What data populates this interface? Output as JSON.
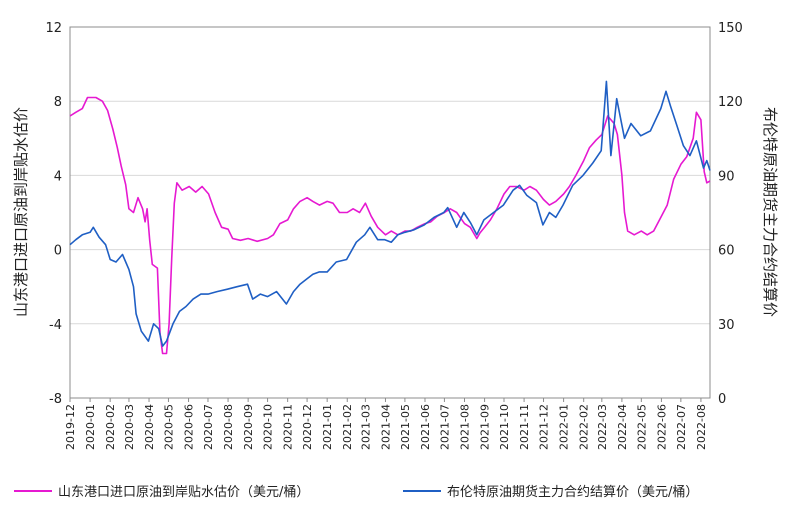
{
  "chart_data": {
    "type": "line",
    "title": "",
    "y_left": {
      "label": "山东港口进口原油到岸贴水估价",
      "ticks": [
        12,
        8,
        4,
        0,
        -4,
        -8
      ],
      "range": [
        -8,
        12
      ]
    },
    "y_right": {
      "label": "布伦特原油期货主力合约结算价",
      "ticks": [
        150,
        120,
        90,
        60,
        30,
        0
      ],
      "range": [
        0,
        150
      ]
    },
    "x_tick_labels": [
      "2019-12",
      "2020-01",
      "2020-02",
      "2020-03",
      "2020-04",
      "2020-05",
      "2020-06",
      "2020-07",
      "2020-08",
      "2020-09",
      "2020-10",
      "2020-11",
      "2020-12",
      "2021-01",
      "2021-02",
      "2021-03",
      "2021-04",
      "2021-05",
      "2021-06",
      "2021-07",
      "2021-08",
      "2021-09",
      "2021-10",
      "2021-11",
      "2021-12",
      "2022-01",
      "2022-02",
      "2022-03",
      "2022-04",
      "2022-05",
      "2022-06",
      "2022-07",
      "2022-08"
    ],
    "grid": "horizontal",
    "legend_position": "bottom",
    "colors": {
      "series1": "#e619d1",
      "series2": "#1f5fc4"
    },
    "series": [
      {
        "name": "山东港口进口原油到岸贴水估价（美元/桶）",
        "axis": "left",
        "points": [
          [
            "2019-12-01",
            7.2
          ],
          [
            "2019-12-10",
            7.4
          ],
          [
            "2019-12-20",
            7.6
          ],
          [
            "2019-12-28",
            8.2
          ],
          [
            "2020-01-10",
            8.2
          ],
          [
            "2020-01-20",
            8.0
          ],
          [
            "2020-01-28",
            7.5
          ],
          [
            "2020-02-05",
            6.5
          ],
          [
            "2020-02-12",
            5.5
          ],
          [
            "2020-02-18",
            4.5
          ],
          [
            "2020-02-25",
            3.5
          ],
          [
            "2020-03-01",
            2.2
          ],
          [
            "2020-03-08",
            2.0
          ],
          [
            "2020-03-15",
            2.8
          ],
          [
            "2020-03-22",
            2.2
          ],
          [
            "2020-03-26",
            1.5
          ],
          [
            "2020-03-29",
            2.2
          ],
          [
            "2020-04-02",
            0.5
          ],
          [
            "2020-04-06",
            -0.8
          ],
          [
            "2020-04-14",
            -1.0
          ],
          [
            "2020-04-18",
            -4.5
          ],
          [
            "2020-04-22",
            -5.6
          ],
          [
            "2020-04-28",
            -5.6
          ],
          [
            "2020-05-02",
            -4.0
          ],
          [
            "2020-05-06",
            -0.5
          ],
          [
            "2020-05-10",
            2.5
          ],
          [
            "2020-05-14",
            3.6
          ],
          [
            "2020-05-22",
            3.2
          ],
          [
            "2020-06-02",
            3.4
          ],
          [
            "2020-06-12",
            3.1
          ],
          [
            "2020-06-22",
            3.4
          ],
          [
            "2020-07-02",
            3.0
          ],
          [
            "2020-07-12",
            2.0
          ],
          [
            "2020-07-22",
            1.2
          ],
          [
            "2020-08-01",
            1.1
          ],
          [
            "2020-08-08",
            0.6
          ],
          [
            "2020-08-20",
            0.5
          ],
          [
            "2020-09-01",
            0.6
          ],
          [
            "2020-09-15",
            0.45
          ],
          [
            "2020-10-01",
            0.6
          ],
          [
            "2020-10-10",
            0.8
          ],
          [
            "2020-10-20",
            1.4
          ],
          [
            "2020-11-01",
            1.6
          ],
          [
            "2020-11-10",
            2.2
          ],
          [
            "2020-11-20",
            2.6
          ],
          [
            "2020-12-01",
            2.8
          ],
          [
            "2020-12-10",
            2.6
          ],
          [
            "2020-12-20",
            2.4
          ],
          [
            "2021-01-01",
            2.6
          ],
          [
            "2021-01-10",
            2.5
          ],
          [
            "2021-01-20",
            2.0
          ],
          [
            "2021-02-01",
            2.0
          ],
          [
            "2021-02-10",
            2.2
          ],
          [
            "2021-02-20",
            2.0
          ],
          [
            "2021-03-01",
            2.5
          ],
          [
            "2021-03-10",
            1.8
          ],
          [
            "2021-03-20",
            1.2
          ],
          [
            "2021-04-01",
            0.8
          ],
          [
            "2021-04-10",
            1.0
          ],
          [
            "2021-04-20",
            0.8
          ],
          [
            "2021-05-01",
            1.0
          ],
          [
            "2021-05-10",
            1.0
          ],
          [
            "2021-05-20",
            1.2
          ],
          [
            "2021-06-01",
            1.4
          ],
          [
            "2021-06-10",
            1.5
          ],
          [
            "2021-06-20",
            1.8
          ],
          [
            "2021-07-01",
            2.0
          ],
          [
            "2021-07-10",
            2.2
          ],
          [
            "2021-07-20",
            2.0
          ],
          [
            "2021-08-01",
            1.4
          ],
          [
            "2021-08-10",
            1.2
          ],
          [
            "2021-08-20",
            0.6
          ],
          [
            "2021-08-25",
            0.9
          ],
          [
            "2021-09-01",
            1.2
          ],
          [
            "2021-09-10",
            1.6
          ],
          [
            "2021-09-20",
            2.2
          ],
          [
            "2021-10-01",
            3.0
          ],
          [
            "2021-10-10",
            3.4
          ],
          [
            "2021-10-20",
            3.4
          ],
          [
            "2021-11-01",
            3.2
          ],
          [
            "2021-11-10",
            3.4
          ],
          [
            "2021-11-20",
            3.2
          ],
          [
            "2021-12-01",
            2.7
          ],
          [
            "2021-12-10",
            2.4
          ],
          [
            "2021-12-20",
            2.6
          ],
          [
            "2022-01-01",
            3.0
          ],
          [
            "2022-01-10",
            3.4
          ],
          [
            "2022-01-20",
            4.0
          ],
          [
            "2022-02-01",
            4.8
          ],
          [
            "2022-02-10",
            5.5
          ],
          [
            "2022-02-20",
            5.9
          ],
          [
            "2022-03-01",
            6.2
          ],
          [
            "2022-03-10",
            7.2
          ],
          [
            "2022-03-20",
            6.8
          ],
          [
            "2022-03-25",
            6.2
          ],
          [
            "2022-04-01",
            4.0
          ],
          [
            "2022-04-05",
            2.0
          ],
          [
            "2022-04-10",
            1.0
          ],
          [
            "2022-04-20",
            0.8
          ],
          [
            "2022-05-01",
            1.0
          ],
          [
            "2022-05-10",
            0.8
          ],
          [
            "2022-05-20",
            1.0
          ],
          [
            "2022-06-01",
            1.8
          ],
          [
            "2022-06-10",
            2.4
          ],
          [
            "2022-06-20",
            3.8
          ],
          [
            "2022-07-01",
            4.6
          ],
          [
            "2022-07-10",
            5.0
          ],
          [
            "2022-07-20",
            6.0
          ],
          [
            "2022-07-25",
            7.4
          ],
          [
            "2022-08-01",
            7.0
          ],
          [
            "2022-08-06",
            4.2
          ],
          [
            "2022-08-10",
            3.6
          ],
          [
            "2022-08-15",
            3.7
          ]
        ]
      },
      {
        "name": "布伦特原油期货主力合约结算价（美元/桶）",
        "axis": "right",
        "points": [
          [
            "2019-12-01",
            62
          ],
          [
            "2019-12-10",
            64
          ],
          [
            "2019-12-20",
            66
          ],
          [
            "2020-01-01",
            67
          ],
          [
            "2020-01-06",
            69
          ],
          [
            "2020-01-15",
            65
          ],
          [
            "2020-01-25",
            62
          ],
          [
            "2020-02-01",
            56
          ],
          [
            "2020-02-10",
            55
          ],
          [
            "2020-02-20",
            58
          ],
          [
            "2020-03-01",
            52
          ],
          [
            "2020-03-08",
            45
          ],
          [
            "2020-03-12",
            34
          ],
          [
            "2020-03-20",
            27
          ],
          [
            "2020-03-31",
            23
          ],
          [
            "2020-04-08",
            30
          ],
          [
            "2020-04-16",
            28
          ],
          [
            "2020-04-22",
            21
          ],
          [
            "2020-04-28",
            23
          ],
          [
            "2020-05-08",
            30
          ],
          [
            "2020-05-18",
            35
          ],
          [
            "2020-05-28",
            37
          ],
          [
            "2020-06-08",
            40
          ],
          [
            "2020-06-20",
            42
          ],
          [
            "2020-07-01",
            42
          ],
          [
            "2020-07-15",
            43
          ],
          [
            "2020-07-31",
            44
          ],
          [
            "2020-08-15",
            45
          ],
          [
            "2020-08-31",
            46
          ],
          [
            "2020-09-08",
            40
          ],
          [
            "2020-09-20",
            42
          ],
          [
            "2020-10-01",
            41
          ],
          [
            "2020-10-15",
            43
          ],
          [
            "2020-10-30",
            38
          ],
          [
            "2020-11-10",
            43
          ],
          [
            "2020-11-20",
            46
          ],
          [
            "2020-11-30",
            48
          ],
          [
            "2020-12-10",
            50
          ],
          [
            "2020-12-20",
            51
          ],
          [
            "2021-01-01",
            51
          ],
          [
            "2021-01-15",
            55
          ],
          [
            "2021-01-31",
            56
          ],
          [
            "2021-02-15",
            63
          ],
          [
            "2021-02-28",
            66
          ],
          [
            "2021-03-08",
            69
          ],
          [
            "2021-03-20",
            64
          ],
          [
            "2021-03-31",
            64
          ],
          [
            "2021-04-10",
            63
          ],
          [
            "2021-04-20",
            66
          ],
          [
            "2021-05-01",
            67
          ],
          [
            "2021-05-15",
            68
          ],
          [
            "2021-05-31",
            70
          ],
          [
            "2021-06-15",
            73
          ],
          [
            "2021-06-30",
            75
          ],
          [
            "2021-07-06",
            77
          ],
          [
            "2021-07-20",
            69
          ],
          [
            "2021-07-31",
            75
          ],
          [
            "2021-08-10",
            71
          ],
          [
            "2021-08-20",
            66
          ],
          [
            "2021-08-31",
            72
          ],
          [
            "2021-09-15",
            75
          ],
          [
            "2021-09-30",
            78
          ],
          [
            "2021-10-15",
            84
          ],
          [
            "2021-10-25",
            86
          ],
          [
            "2021-11-05",
            82
          ],
          [
            "2021-11-20",
            79
          ],
          [
            "2021-11-30",
            70
          ],
          [
            "2021-12-10",
            75
          ],
          [
            "2021-12-20",
            73
          ],
          [
            "2021-12-31",
            78
          ],
          [
            "2022-01-15",
            86
          ],
          [
            "2022-01-31",
            90
          ],
          [
            "2022-02-15",
            95
          ],
          [
            "2022-02-28",
            100
          ],
          [
            "2022-03-08",
            128
          ],
          [
            "2022-03-15",
            98
          ],
          [
            "2022-03-24",
            121
          ],
          [
            "2022-04-05",
            105
          ],
          [
            "2022-04-15",
            111
          ],
          [
            "2022-04-30",
            106
          ],
          [
            "2022-05-15",
            108
          ],
          [
            "2022-05-31",
            117
          ],
          [
            "2022-06-08",
            124
          ],
          [
            "2022-06-15",
            118
          ],
          [
            "2022-06-25",
            110
          ],
          [
            "2022-07-05",
            102
          ],
          [
            "2022-07-15",
            98
          ],
          [
            "2022-07-25",
            104
          ],
          [
            "2022-08-05",
            93
          ],
          [
            "2022-08-10",
            96
          ],
          [
            "2022-08-15",
            92
          ]
        ]
      }
    ]
  }
}
